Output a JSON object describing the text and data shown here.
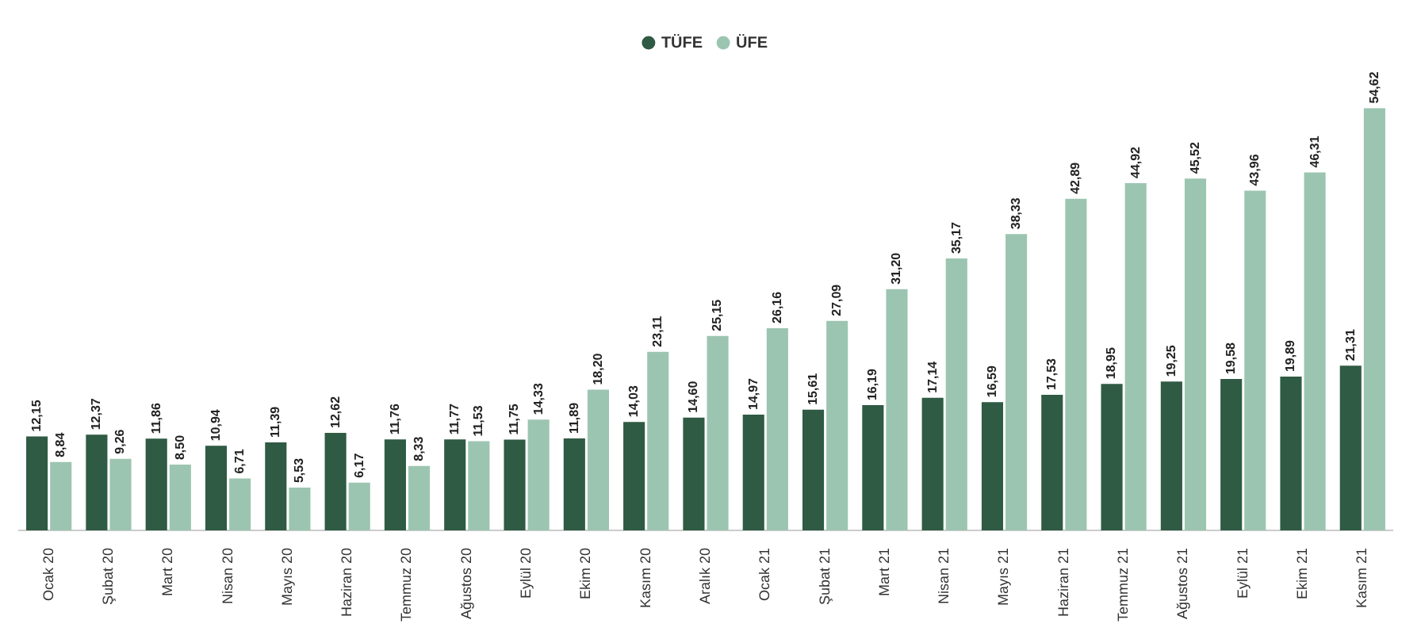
{
  "chart_data": {
    "type": "bar",
    "categories": [
      "Ocak 20",
      "Şubat 20",
      "Mart 20",
      "Nisan 20",
      "Mayıs 20",
      "Haziran 20",
      "Temmuz 20",
      "Ağustos 20",
      "Eylül 20",
      "Ekim 20",
      "Kasım 20",
      "Aralık 20",
      "Ocak 21",
      "Şubat 21",
      "Mart 21",
      "Nisan 21",
      "Mayıs 21",
      "Haziran 21",
      "Temmuz 21",
      "Ağustos 21",
      "Eylül 21",
      "Ekim 21",
      "Kasım 21"
    ],
    "series": [
      {
        "name": "TÜFE",
        "color": "#2f5a43",
        "values": [
          12.15,
          12.37,
          11.86,
          10.94,
          11.39,
          12.62,
          11.76,
          11.77,
          11.75,
          11.89,
          14.03,
          14.6,
          14.97,
          15.61,
          16.19,
          17.14,
          16.59,
          17.53,
          18.95,
          19.25,
          19.58,
          19.89,
          21.31
        ],
        "value_labels": [
          "12,15",
          "12,37",
          "11,86",
          "10,94",
          "11,39",
          "12,62",
          "11,76",
          "11,77",
          "11,75",
          "11,89",
          "14,03",
          "14,60",
          "14,97",
          "15,61",
          "16,19",
          "17,14",
          "16,59",
          "17,53",
          "18,95",
          "19,25",
          "19,58",
          "19,89",
          "21,31"
        ]
      },
      {
        "name": "ÜFE",
        "color": "#9cc5b1",
        "values": [
          8.84,
          9.26,
          8.5,
          6.71,
          5.53,
          6.17,
          8.33,
          11.53,
          14.33,
          18.2,
          23.11,
          25.15,
          26.16,
          27.09,
          31.2,
          35.17,
          38.33,
          42.89,
          44.92,
          45.52,
          43.96,
          46.31,
          54.62
        ],
        "value_labels": [
          "8,84",
          "9,26",
          "8,50",
          "6,71",
          "5,53",
          "6,17",
          "8,33",
          "11,53",
          "14,33",
          "18,20",
          "23,11",
          "25,15",
          "26,16",
          "27,09",
          "31,20",
          "35,17",
          "38,33",
          "42,89",
          "44,92",
          "45,52",
          "43,96",
          "46,31",
          "54,62"
        ]
      }
    ],
    "legend": "top",
    "grid": false,
    "tick_labels": "x"
  }
}
